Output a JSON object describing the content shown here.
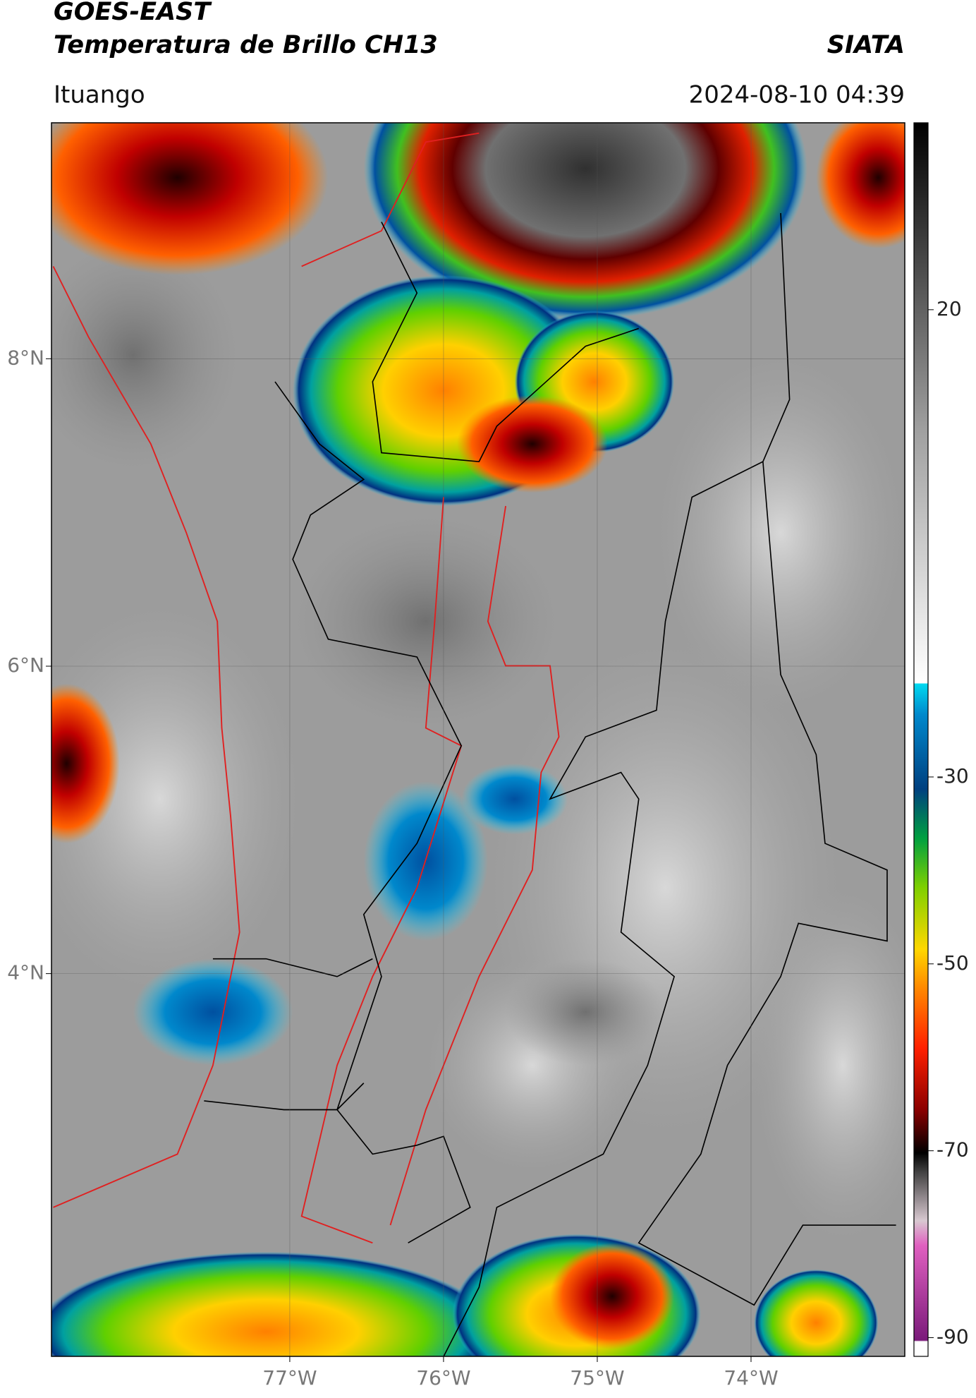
{
  "chart_data": {
    "type": "map",
    "title": "GOES-EAST",
    "subtitle": "Temperatura de Brillo CH13",
    "source": "SIATA",
    "location": "Ituango",
    "datetime": "2024-08-10 04:39",
    "xlim": [
      -78.55,
      -73.0
    ],
    "ylim": [
      1.51,
      9.535
    ],
    "xticks": [
      {
        "value": -77,
        "label": "77°W"
      },
      {
        "value": -76,
        "label": "76°W"
      },
      {
        "value": -75,
        "label": "75°W"
      },
      {
        "value": -74,
        "label": "74°W"
      }
    ],
    "yticks": [
      {
        "value": 4,
        "label": "4°N"
      },
      {
        "value": 6,
        "label": "6°N"
      },
      {
        "value": 8,
        "label": "8°N"
      }
    ],
    "grid": true,
    "colorbar": {
      "lim": [
        -92,
        40
      ],
      "ticks": [
        20,
        -30,
        -50,
        -70,
        -90
      ]
    }
  }
}
